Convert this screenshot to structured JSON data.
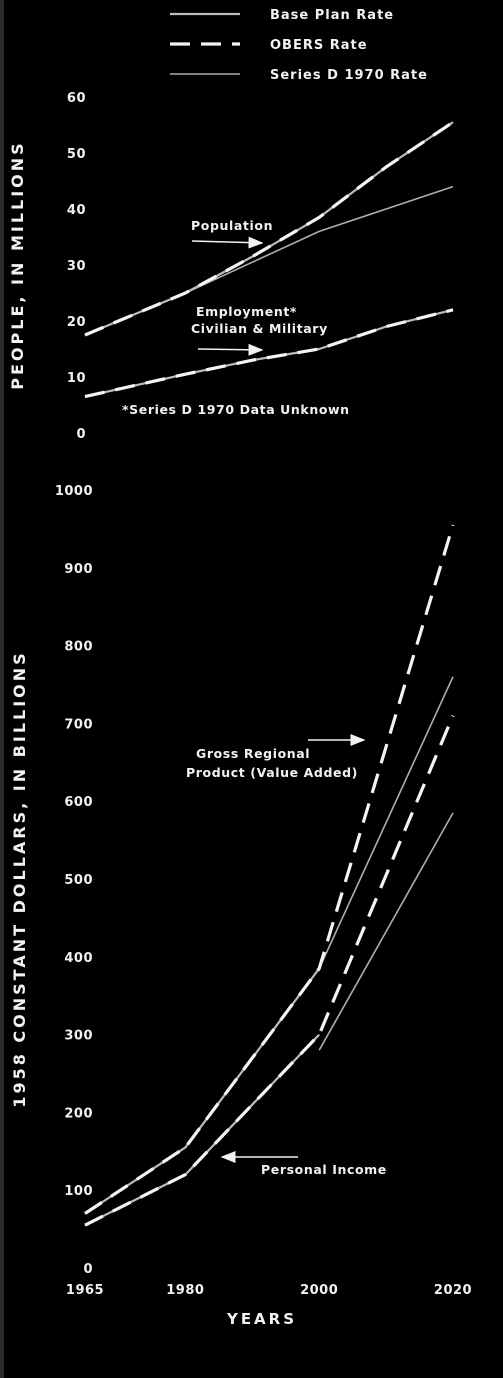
{
  "legend": [
    {
      "label": "Base Plan Rate",
      "style": "solid-light",
      "color": "#cfcfcf"
    },
    {
      "label": "OBERS Rate",
      "style": "dashed",
      "color": "#f5f5f5"
    },
    {
      "label": "Series D 1970 Rate",
      "style": "solid-white",
      "color": "#ffffff"
    }
  ],
  "x_axis": {
    "label": "YEARS",
    "ticks": [
      1965,
      1980,
      2000,
      2020
    ]
  },
  "chart_data": [
    {
      "type": "line",
      "ylabel": "PEOPLE, IN MILLIONS",
      "ylim": [
        0,
        60
      ],
      "yticks": [
        0,
        10,
        20,
        30,
        40,
        50,
        60
      ],
      "x": [
        1965,
        1980,
        2000,
        2020
      ],
      "annotations": [
        {
          "text": "Population"
        },
        {
          "text": "Employment*"
        },
        {
          "text": "Civilian & Military"
        },
        {
          "text": "*Series D 1970 Data Unknown"
        }
      ],
      "series": [
        {
          "name": "Population",
          "rate": "OBERS Rate",
          "x": [
            1965,
            1980,
            1990,
            2000,
            2010,
            2020
          ],
          "values": [
            17.5,
            25,
            31.5,
            38.5,
            47.5,
            55.5
          ]
        },
        {
          "name": "Population",
          "rate": "Base Plan Rate",
          "x": [
            1965,
            1980,
            1990,
            2000,
            2010,
            2020
          ],
          "values": [
            17.5,
            25,
            31.5,
            38.5,
            47.5,
            55.5
          ]
        },
        {
          "name": "Population",
          "rate": "Series D 1970 Rate",
          "x": [
            1980,
            1990,
            2000,
            2010,
            2020
          ],
          "values": [
            25,
            30.5,
            36,
            40,
            44
          ]
        },
        {
          "name": "Employment",
          "rate": "OBERS Rate",
          "x": [
            1965,
            1980,
            1990,
            2000,
            2010,
            2020
          ],
          "values": [
            6.5,
            10.5,
            13,
            15,
            19,
            22
          ]
        },
        {
          "name": "Employment",
          "rate": "Base Plan Rate",
          "x": [
            1965,
            1980,
            1990,
            2000,
            2010,
            2020
          ],
          "values": [
            6.5,
            10.5,
            13,
            15,
            19,
            22
          ]
        }
      ]
    },
    {
      "type": "line",
      "ylabel": "1958 CONSTANT DOLLARS, IN BILLIONS",
      "ylim": [
        0,
        1000
      ],
      "yticks": [
        0,
        100,
        200,
        300,
        400,
        500,
        600,
        700,
        800,
        900,
        1000
      ],
      "x": [
        1965,
        1980,
        2000,
        2020
      ],
      "annotations": [
        {
          "text": "Gross Regional"
        },
        {
          "text": "Product (Value Added)"
        },
        {
          "text": "Personal Income"
        }
      ],
      "series": [
        {
          "name": "Gross Regional Product (Value Added)",
          "rate": "OBERS Rate",
          "x": [
            1965,
            1980,
            2000,
            2020
          ],
          "values": [
            70,
            155,
            385,
            955
          ]
        },
        {
          "name": "Gross Regional Product (Value Added)",
          "rate": "Base Plan Rate",
          "x": [
            1965,
            1980,
            2000
          ],
          "values": [
            70,
            155,
            385
          ]
        },
        {
          "name": "Gross Regional Product (Value Added)",
          "rate": "Series D 1970 Rate",
          "x": [
            2000,
            2020
          ],
          "values": [
            385,
            760
          ]
        },
        {
          "name": "Personal Income",
          "rate": "OBERS Rate",
          "x": [
            1965,
            1980,
            2000,
            2020
          ],
          "values": [
            55,
            120,
            300,
            710
          ]
        },
        {
          "name": "Personal Income",
          "rate": "Base Plan Rate",
          "x": [
            1965,
            1980,
            2000
          ],
          "values": [
            55,
            120,
            300
          ]
        },
        {
          "name": "Personal Income",
          "rate": "Series D 1970 Rate",
          "x": [
            2000,
            2020
          ],
          "values": [
            280,
            585
          ]
        }
      ]
    }
  ]
}
